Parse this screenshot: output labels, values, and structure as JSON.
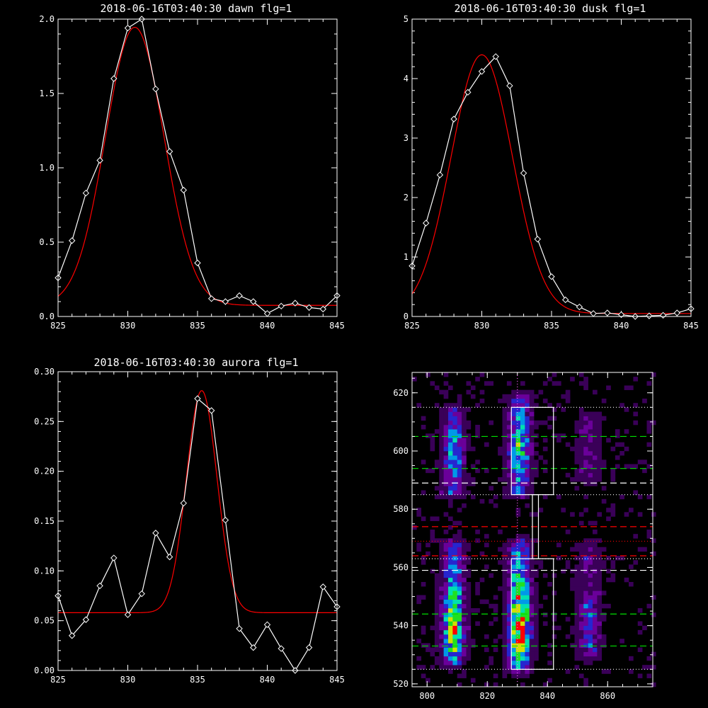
{
  "chart_data": [
    {
      "type": "line",
      "title": "2018-06-16T03:40:30 dawn flg=1",
      "xlim": [
        825,
        845
      ],
      "ylim": [
        0,
        2.0
      ],
      "x_ticks": [
        "825",
        "830",
        "835",
        "840",
        "845"
      ],
      "y_ticks": [
        "0.0",
        "0.5",
        "1.0",
        "1.5",
        "2.0"
      ],
      "series": [
        {
          "color": "#ffffff",
          "marker": "diamond",
          "x": [
            825,
            826,
            827,
            828,
            829,
            830,
            831,
            832,
            833,
            834,
            835,
            836,
            837,
            838,
            839,
            840,
            841,
            842,
            843,
            844,
            845
          ],
          "y": [
            0.26,
            0.51,
            0.83,
            1.05,
            1.6,
            1.94,
            2.0,
            1.53,
            1.11,
            0.85,
            0.36,
            0.12,
            0.1,
            0.14,
            0.1,
            0.02,
            0.07,
            0.09,
            0.06,
            0.05,
            0.14
          ]
        },
        {
          "color": "#ff0000",
          "fit": {
            "amplitude": 1.87,
            "center": 830.5,
            "sigma": 2.1,
            "offset": 0.075
          }
        }
      ]
    },
    {
      "type": "line",
      "title": "2018-06-16T03:40:30 dusk flg=1",
      "xlim": [
        825,
        845
      ],
      "ylim": [
        0,
        5
      ],
      "x_ticks": [
        "825",
        "830",
        "835",
        "840",
        "845"
      ],
      "y_ticks": [
        "0",
        "1",
        "2",
        "3",
        "4",
        "5"
      ],
      "series": [
        {
          "color": "#ffffff",
          "marker": "diamond",
          "x": [
            825,
            826,
            827,
            828,
            829,
            830,
            831,
            832,
            833,
            834,
            835,
            836,
            837,
            838,
            839,
            840,
            841,
            842,
            843,
            844,
            845
          ],
          "y": [
            0.85,
            1.57,
            2.38,
            3.32,
            3.77,
            4.12,
            4.37,
            3.88,
            2.41,
            1.3,
            0.67,
            0.28,
            0.16,
            0.05,
            0.06,
            0.03,
            0.0,
            0.01,
            0.02,
            0.06,
            0.13
          ]
        },
        {
          "color": "#ff0000",
          "fit": {
            "amplitude": 4.35,
            "center": 830.0,
            "sigma": 2.2,
            "offset": 0.05
          }
        }
      ]
    },
    {
      "type": "line",
      "title": "2018-06-16T03:40:30 aurora flg=1",
      "xlim": [
        825,
        845
      ],
      "ylim": [
        0,
        0.3
      ],
      "x_ticks": [
        "825",
        "830",
        "835",
        "840",
        "845"
      ],
      "y_ticks": [
        "0.00",
        "0.05",
        "0.10",
        "0.15",
        "0.20",
        "0.25",
        "0.30"
      ],
      "series": [
        {
          "color": "#ffffff",
          "marker": "diamond",
          "x": [
            825,
            826,
            827,
            828,
            829,
            830,
            831,
            832,
            833,
            834,
            835,
            836,
            837,
            838,
            839,
            840,
            841,
            842,
            843,
            844,
            845
          ],
          "y": [
            0.075,
            0.035,
            0.051,
            0.085,
            0.113,
            0.056,
            0.077,
            0.138,
            0.114,
            0.168,
            0.273,
            0.261,
            0.151,
            0.042,
            0.023,
            0.046,
            0.022,
            0.0,
            0.023,
            0.084,
            0.064
          ]
        },
        {
          "color": "#ff0000",
          "fit": {
            "amplitude": 0.223,
            "center": 835.3,
            "sigma": 1.1,
            "offset": 0.058
          }
        }
      ]
    },
    {
      "type": "heatmap",
      "title": "",
      "xlim": [
        795,
        875
      ],
      "ylim": [
        519,
        627
      ],
      "x_ticks": [
        "800",
        "820",
        "840",
        "860"
      ],
      "y_ticks": [
        "520",
        "540",
        "560",
        "580",
        "600",
        "620"
      ],
      "colormap": [
        "#000000",
        "#3a0058",
        "#6a009a",
        "#2626d0",
        "#0098e8",
        "#00e0b0",
        "#20e020",
        "#d0e000",
        "#ff0000"
      ],
      "emission_bands": [
        {
          "x_center": 808,
          "y_ranges": [
            [
              586,
              612
            ],
            [
              528,
              566
            ]
          ],
          "peak": 0.8
        },
        {
          "x_center": 830,
          "y_ranges": [
            [
              586,
              616
            ],
            [
              526,
              566
            ]
          ],
          "peak": 1.0
        },
        {
          "x_center": 853,
          "y_ranges": [
            [
              590,
              610
            ],
            [
              530,
              566
            ]
          ],
          "peak": 0.35
        }
      ],
      "boxes": [
        {
          "color": "#ffffff",
          "x": [
            828,
            842
          ],
          "y": [
            585,
            615
          ]
        },
        {
          "color": "#ffffff",
          "x": [
            828,
            842
          ],
          "y": [
            525,
            563
          ]
        },
        {
          "color": "#ffffff",
          "x": [
            835,
            837
          ],
          "y": [
            563,
            585
          ]
        }
      ],
      "vertical_lines": [
        {
          "x": 830,
          "color": "#ff60ff",
          "style": "dotted"
        }
      ],
      "horizontal_lines": [
        {
          "y": 615,
          "color": "#ffffff",
          "style": "dotted"
        },
        {
          "y": 605,
          "color": "#00e000",
          "style": "dashed"
        },
        {
          "y": 594,
          "color": "#00e000",
          "style": "dashed"
        },
        {
          "y": 589,
          "color": "#ffffff",
          "style": "dashed"
        },
        {
          "y": 585,
          "color": "#ffffff",
          "style": "dotted"
        },
        {
          "y": 574,
          "color": "#ff0000",
          "style": "dashed"
        },
        {
          "y": 569,
          "color": "#ff0000",
          "style": "dotted"
        },
        {
          "y": 564,
          "color": "#ff0000",
          "style": "dashed"
        },
        {
          "y": 563,
          "color": "#ffffff",
          "style": "dotted"
        },
        {
          "y": 559,
          "color": "#ffffff",
          "style": "dashed"
        },
        {
          "y": 544,
          "color": "#00e000",
          "style": "dashed"
        },
        {
          "y": 533,
          "color": "#00e000",
          "style": "dashed"
        },
        {
          "y": 525,
          "color": "#ffffff",
          "style": "dotted"
        }
      ]
    }
  ]
}
